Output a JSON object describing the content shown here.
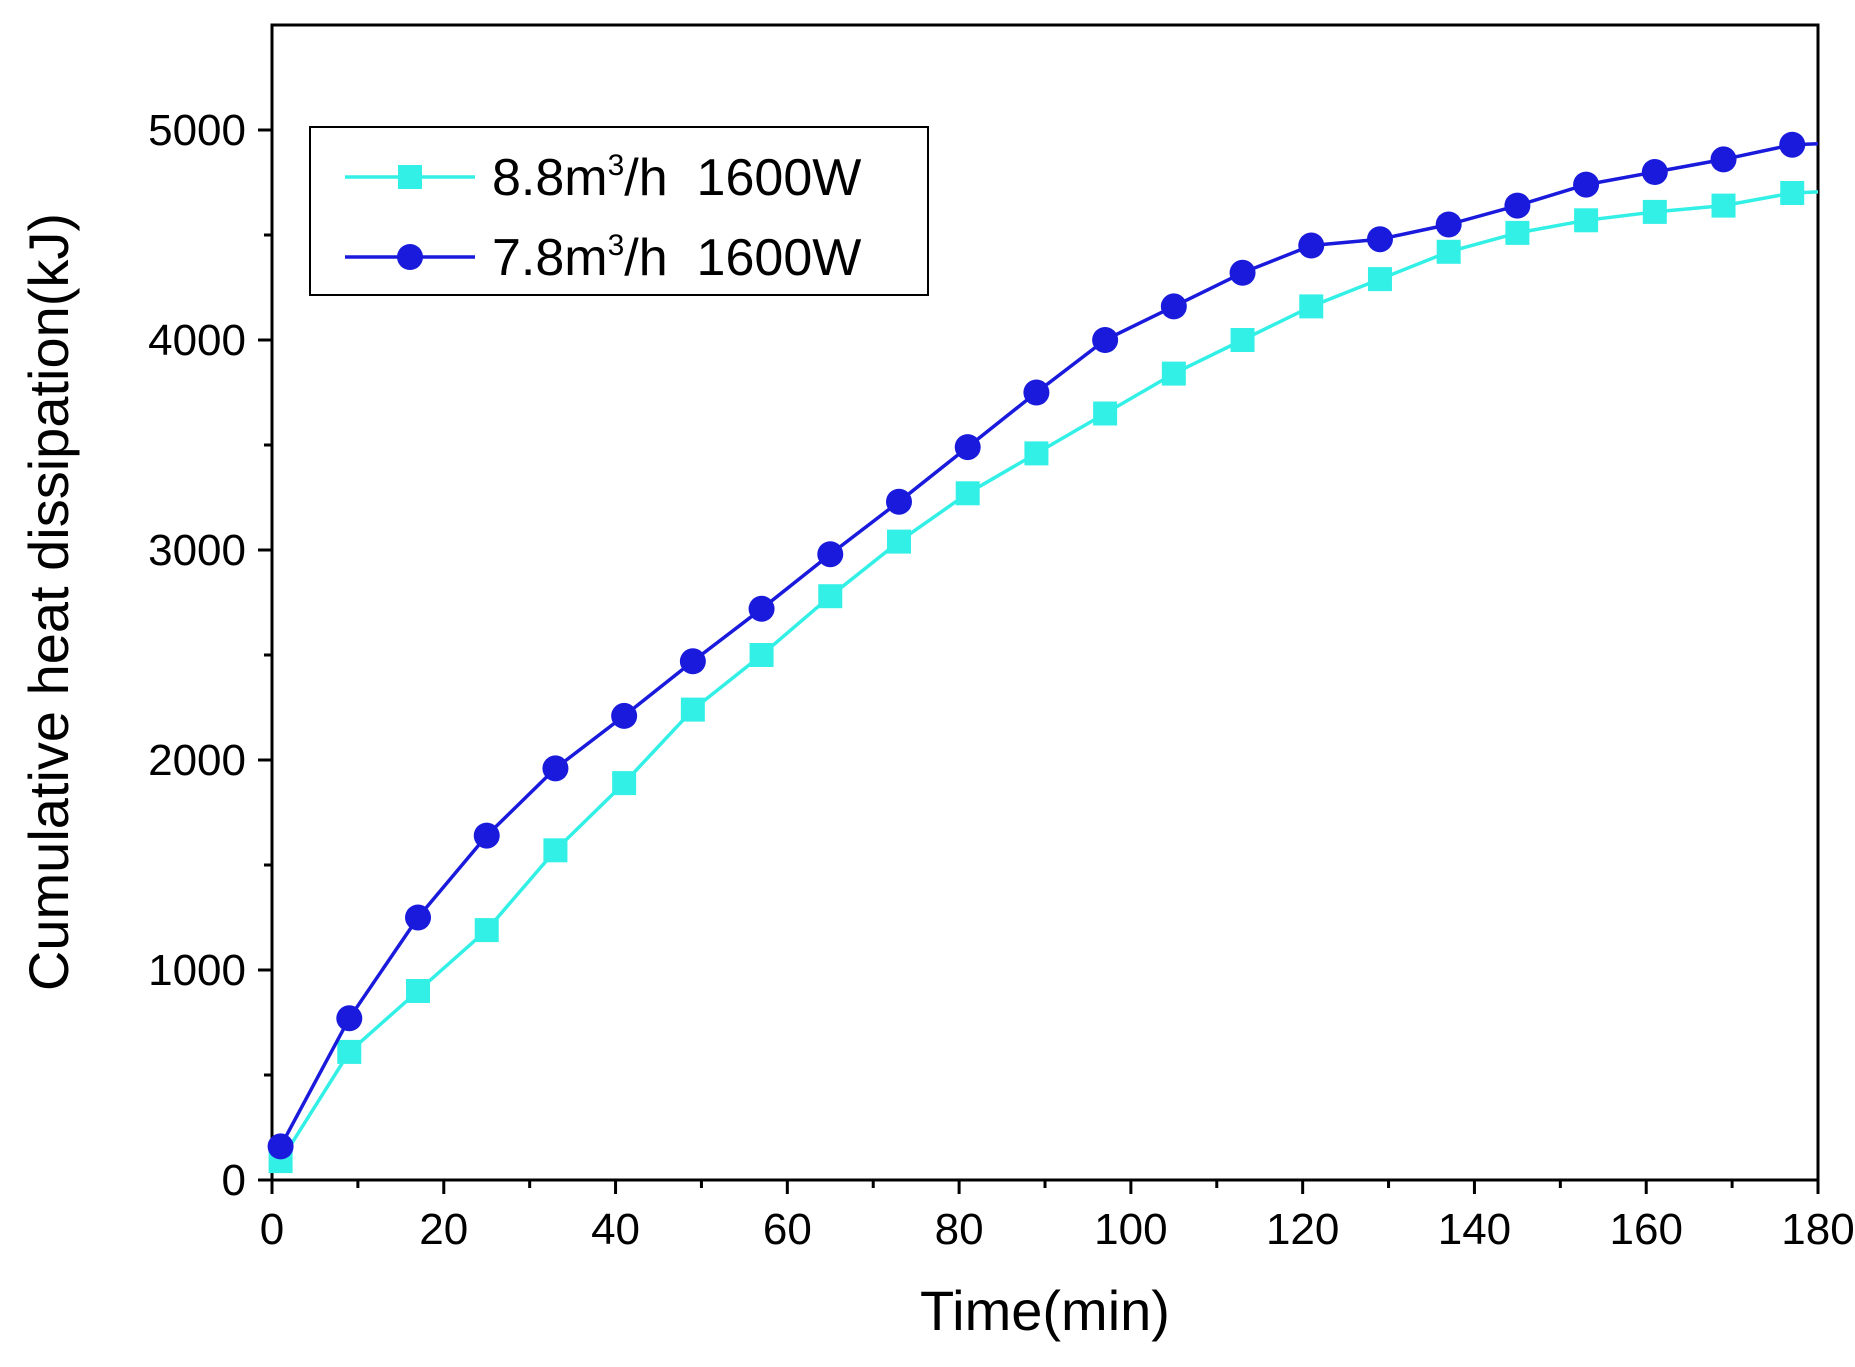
{
  "chart_data": {
    "type": "line",
    "title": "",
    "xlabel": "Time(min)",
    "ylabel": "Cumulative heat dissipation(kJ)",
    "xlim": [
      0,
      180
    ],
    "ylim": [
      0,
      5500
    ],
    "xticks": [
      0,
      20,
      40,
      60,
      80,
      100,
      120,
      140,
      160,
      180
    ],
    "xtick_labels": [
      "0",
      "20",
      "40",
      "60",
      "80",
      "100",
      "120",
      "140",
      "160",
      "180"
    ],
    "yticks": [
      0,
      1000,
      2000,
      3000,
      4000,
      5000
    ],
    "ytick_labels": [
      "0",
      "1000",
      "2000",
      "3000",
      "4000",
      "5000"
    ],
    "grid": false,
    "legend_position": "top-left",
    "series": [
      {
        "name": "8.8m3/h  1600W",
        "label_parts": [
          "8.8m",
          "3",
          "/h  1600W"
        ],
        "color": "#33f0e6",
        "marker": "square",
        "x": [
          1,
          9,
          17,
          25,
          33,
          41,
          49,
          57,
          65,
          73,
          81,
          89,
          97,
          105,
          113,
          121,
          129,
          137,
          145,
          153,
          161,
          169,
          177
        ],
        "values": [
          90,
          610,
          900,
          1190,
          1570,
          1890,
          2240,
          2500,
          2780,
          3040,
          3270,
          3460,
          3650,
          3840,
          4000,
          4160,
          4290,
          4420,
          4510,
          4570,
          4610,
          4640,
          4700
        ]
      },
      {
        "name": "7.8m3/h  1600W",
        "label_parts": [
          "7.8m",
          "3",
          "/h  1600W"
        ],
        "color": "#1a1adc",
        "marker": "circle",
        "x": [
          1,
          9,
          17,
          25,
          33,
          41,
          49,
          57,
          65,
          73,
          81,
          89,
          97,
          105,
          113,
          121,
          129,
          137,
          145,
          153,
          161,
          169,
          177
        ],
        "values": [
          160,
          770,
          1250,
          1640,
          1960,
          2210,
          2470,
          2720,
          2980,
          3230,
          3490,
          3750,
          4000,
          4160,
          4320,
          4450,
          4480,
          4550,
          4640,
          4740,
          4800,
          4860,
          4930
        ]
      }
    ]
  }
}
